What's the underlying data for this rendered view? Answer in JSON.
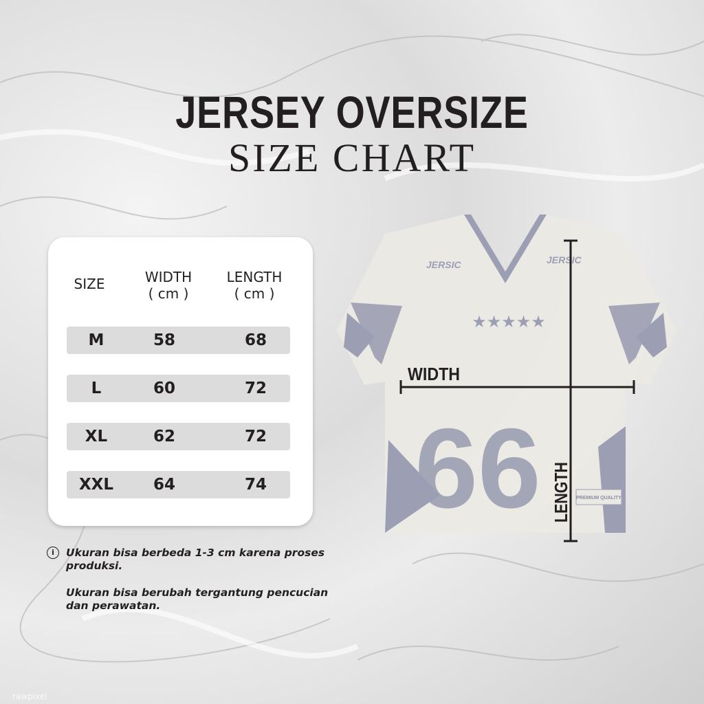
{
  "header": {
    "title": "JERSEY OVERSIZE",
    "subtitle": "SIZE CHART"
  },
  "table": {
    "columns": [
      {
        "label": "SIZE",
        "unit": ""
      },
      {
        "label": "WIDTH",
        "unit": "( cm )"
      },
      {
        "label": "LENGTH",
        "unit": "( cm )"
      }
    ],
    "rows": [
      {
        "size": "M",
        "width": "58",
        "length": "68"
      },
      {
        "size": "L",
        "width": "60",
        "length": "72"
      },
      {
        "size": "XL",
        "width": "62",
        "length": "72"
      },
      {
        "size": "XXL",
        "width": "64",
        "length": "74"
      }
    ]
  },
  "notes": {
    "icon": "info-icon",
    "line1": "Ukuran bisa berbeda 1-3 cm karena proses",
    "line1b": "produksi.",
    "line2": "Ukuran bisa berubah tergantung pencucian",
    "line2b": "dan perawatan."
  },
  "jersey": {
    "brand": "JERSIC",
    "number": "66",
    "width_label": "WIDTH",
    "length_label": "LENGTH",
    "tag": "PREMIUM QUALITY",
    "print_color": "#9c9fb3",
    "fabric_color": "#ebe9e4"
  },
  "watermark": "rawpixel"
}
